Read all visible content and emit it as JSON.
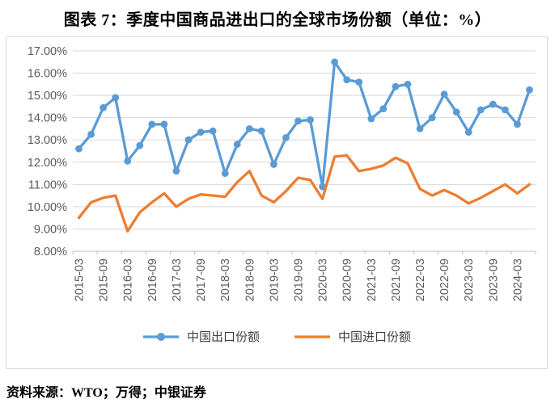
{
  "title": "图表 7：季度中国商品进出口的全球市场份额（单位：%）",
  "source": "资料来源：WTO；万得；中银证券",
  "colors": {
    "export_series": "#5B9BD5",
    "import_series": "#ED7D31",
    "grid": "#D9D9D9",
    "axis_line": "#BFBFBF",
    "axis_text": "#595959",
    "border": "#D9D9D9"
  },
  "chart_data": {
    "type": "line",
    "title": "图表 7：季度中国商品进出口的全球市场份额（单位：%）",
    "xlabel": "",
    "ylabel": "",
    "ylim": [
      8,
      17
    ],
    "grid": true,
    "legend_position": "bottom",
    "y_tick_labels": [
      "17.00%",
      "16.00%",
      "15.00%",
      "14.00%",
      "13.00%",
      "12.00%",
      "11.00%",
      "10.00%",
      "9.00%",
      "8.00%"
    ],
    "x": [
      "2015-03",
      "2015-06",
      "2015-09",
      "2015-12",
      "2016-03",
      "2016-06",
      "2016-09",
      "2016-12",
      "2017-03",
      "2017-06",
      "2017-09",
      "2017-12",
      "2018-03",
      "2018-06",
      "2018-09",
      "2018-12",
      "2019-03",
      "2019-06",
      "2019-09",
      "2019-12",
      "2020-03",
      "2020-06",
      "2020-09",
      "2020-12",
      "2021-03",
      "2021-06",
      "2021-09",
      "2021-12",
      "2022-03",
      "2022-06",
      "2022-09",
      "2022-12",
      "2023-03",
      "2023-06",
      "2023-09",
      "2023-12",
      "2024-03",
      "2024-06"
    ],
    "x_tick_labels": [
      "2015-03",
      "2015-09",
      "2016-03",
      "2016-09",
      "2017-03",
      "2017-09",
      "2018-03",
      "2018-09",
      "2019-03",
      "2019-09",
      "2020-03",
      "2020-09",
      "2021-03",
      "2021-09",
      "2022-03",
      "2022-09",
      "2023-03",
      "2023-09",
      "2024-03"
    ],
    "x_label_every": 2,
    "series": [
      {
        "name": "中国出口份额",
        "color": "#5B9BD5",
        "marker": "circle",
        "values": [
          12.6,
          13.25,
          14.45,
          14.9,
          12.05,
          12.75,
          13.7,
          13.7,
          11.6,
          13.0,
          13.35,
          13.4,
          11.5,
          12.8,
          13.5,
          13.4,
          11.9,
          13.1,
          13.85,
          13.9,
          10.9,
          16.5,
          15.7,
          15.6,
          13.95,
          14.4,
          15.4,
          15.5,
          13.5,
          14.0,
          15.05,
          14.25,
          13.35,
          14.35,
          14.6,
          14.35,
          13.7,
          15.25
        ]
      },
      {
        "name": "中国进口份额",
        "color": "#ED7D31",
        "marker": "none",
        "values": [
          9.5,
          10.2,
          10.4,
          10.5,
          8.9,
          9.75,
          10.2,
          10.6,
          10.0,
          10.35,
          10.55,
          10.5,
          10.45,
          11.1,
          11.6,
          10.5,
          10.2,
          10.7,
          11.3,
          11.2,
          10.35,
          12.25,
          12.3,
          11.6,
          11.7,
          11.85,
          12.2,
          11.95,
          10.8,
          10.5,
          10.75,
          10.5,
          10.15,
          10.4,
          10.7,
          11.0,
          10.6,
          11.0
        ]
      }
    ]
  }
}
